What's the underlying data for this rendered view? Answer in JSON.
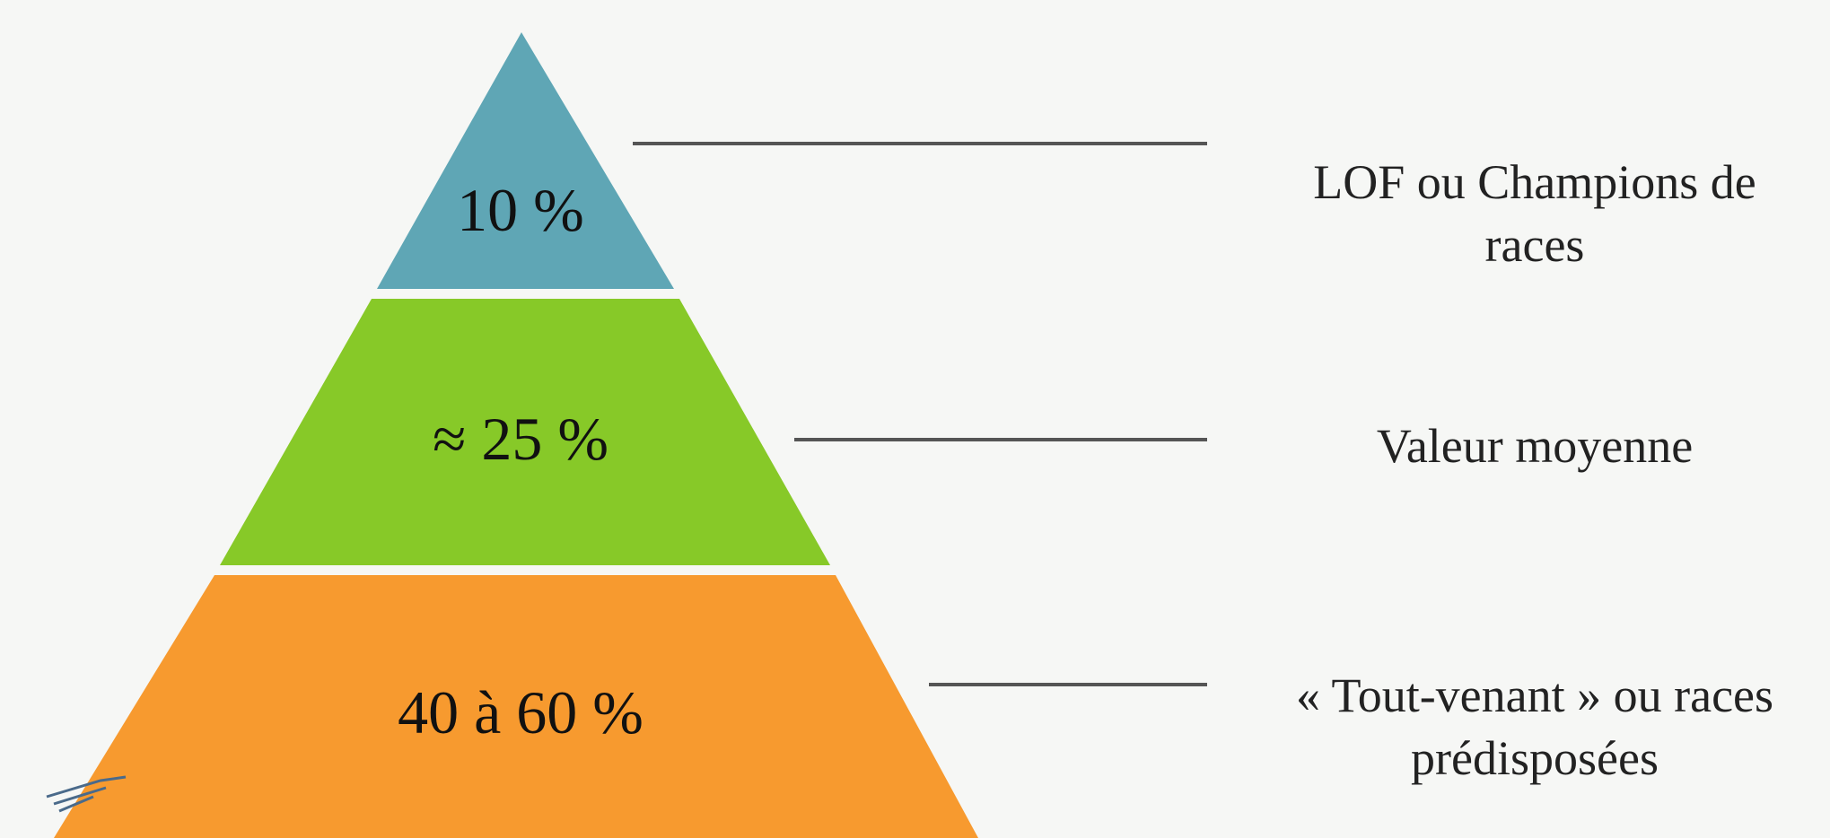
{
  "tiers": [
    {
      "percentage": "10 %",
      "description": [
        "LOF ou Champions de",
        "races"
      ],
      "color": "#5fa6b5"
    },
    {
      "percentage": "≈ 25 %",
      "description": [
        "Valeur moyenne"
      ],
      "color": "#87c928"
    },
    {
      "percentage": "40 à 60 %",
      "description": [
        "« Tout-venant » ou races",
        "prédisposées"
      ],
      "color": "#f79a2f"
    }
  ]
}
